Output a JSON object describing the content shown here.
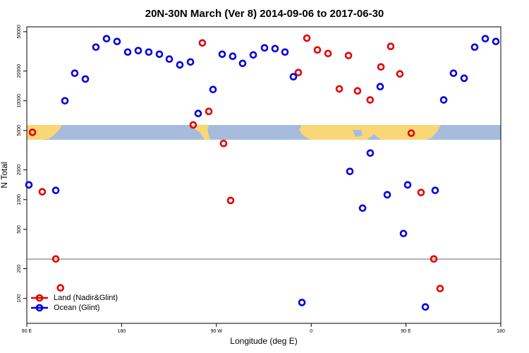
{
  "chart_data": {
    "type": "scatter",
    "title": "20N-30N March (Ver 8)   2014-09-06 to 2017-06-30",
    "xlabel": "Longitude (deg E)",
    "ylabel": "N Total",
    "xlim": [
      90,
      540
    ],
    "xticks": [
      {
        "value": 90,
        "label": "90 E"
      },
      180,
      {
        "value": 270,
        "label": "90 W"
      },
      {
        "value": 360,
        "label": "0"
      },
      {
        "value": 450,
        "label": "90 E"
      },
      {
        "value": 540,
        "label": "180"
      }
    ],
    "ylim": [
      56,
      56000
    ],
    "yscale": "log",
    "yticks": [
      100,
      200,
      500,
      1000,
      2000,
      5000,
      10000,
      20000,
      50000
    ],
    "reference_line": 250,
    "legend": "lower left",
    "series": [
      {
        "name": "Land (Nadir&Glint)",
        "color": "#e60000",
        "x": [
          95.4,
          104.7,
          117.5,
          122,
          248,
          256.7,
          262.8,
          276.8,
          283.5,
          347.8,
          355.9,
          365.9,
          376,
          386.7,
          395.4,
          404,
          416,
          426.2,
          435.5,
          444.2,
          455,
          464.3,
          476.4,
          482.4
        ],
        "values": [
          4800,
          1200,
          251,
          128,
          5700,
          38500,
          7800,
          3700,
          980,
          19300,
          43000,
          32700,
          30100,
          13200,
          28700,
          12600,
          10200,
          22000,
          35500,
          18700,
          4700,
          1180,
          251,
          126
        ]
      },
      {
        "name": "Ocean (Glint)",
        "color": "#0000e0",
        "x": [
          92,
          117.5,
          126.2,
          135.5,
          145.6,
          155.6,
          165.7,
          175.7,
          185.8,
          195.8,
          205.8,
          215.9,
          225.3,
          235.3,
          245.4,
          252.7,
          266.8,
          275.5,
          285.5,
          294.9,
          305,
          315.7,
          325.7,
          335.1,
          343.1,
          351.2,
          396.7,
          408.8,
          416.1,
          425.5,
          432.2,
          447.6,
          451.6,
          468.4,
          477.7,
          485.8,
          495.1,
          505.2,
          515.2,
          525.3,
          535.3
        ],
        "values": [
          1410,
          1240,
          10000,
          19000,
          16600,
          34900,
          42500,
          39800,
          31100,
          32200,
          31100,
          29600,
          26400,
          23100,
          24700,
          7440,
          13000,
          29600,
          28200,
          23900,
          29100,
          34300,
          33700,
          31100,
          17500,
          91,
          1930,
          820,
          2960,
          13900,
          1120,
          454,
          1410,
          82,
          1240,
          10200,
          19000,
          16900,
          34900,
          42500,
          39800
        ]
      }
    ]
  }
}
